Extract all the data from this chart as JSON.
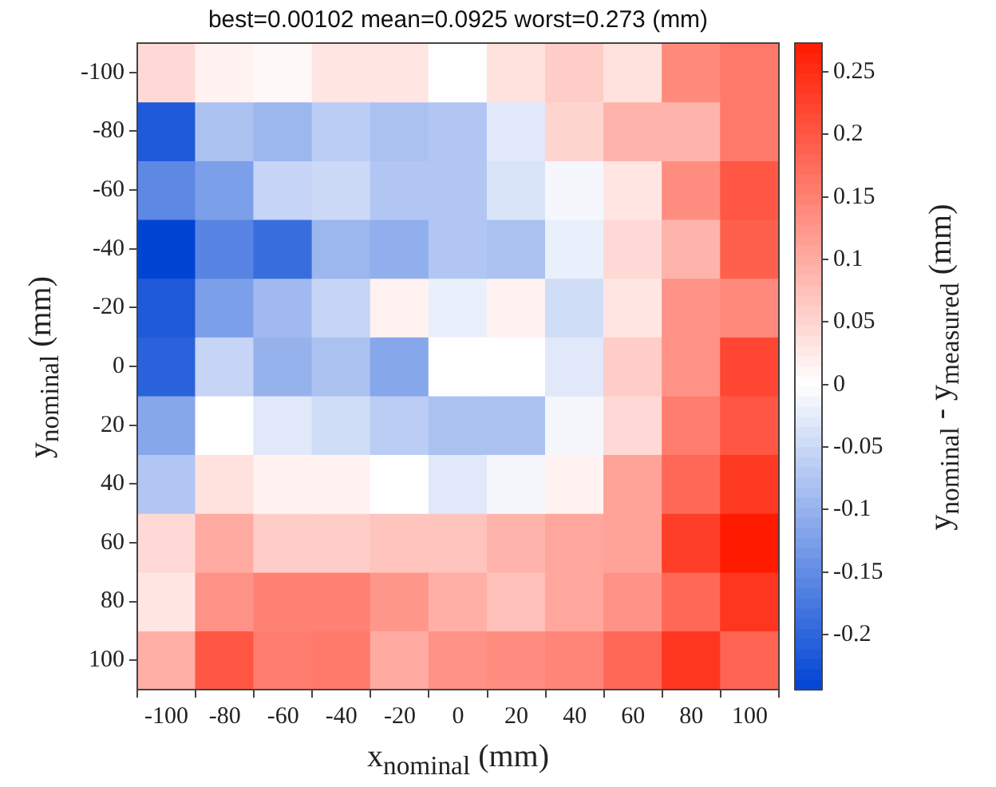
{
  "chart_data": {
    "type": "heatmap",
    "title": "best=0.00102  mean=0.0925  worst=0.273 (mm)",
    "xlabel": "x$_{nominal}$ (mm)",
    "ylabel": "y$_{nominal}$ (mm)",
    "clabel": "y$_{nominal}$ - y$_{measured}$ (mm)",
    "categories": [
      "-100",
      "-80",
      "-60",
      "-40",
      "-20",
      "0",
      "20",
      "40",
      "60",
      "80",
      "100"
    ],
    "y_categories": [
      "-100",
      "-80",
      "-60",
      "-40",
      "-20",
      "0",
      "20",
      "40",
      "60",
      "80",
      "100"
    ],
    "cells": [
      [
        0.045,
        0.015,
        0.008,
        0.03,
        0.03,
        0.001,
        0.035,
        0.06,
        0.035,
        0.14,
        0.16
      ],
      [
        -0.215,
        -0.08,
        -0.095,
        -0.065,
        -0.08,
        -0.075,
        -0.03,
        0.05,
        0.09,
        0.09,
        0.16
      ],
      [
        -0.155,
        -0.125,
        -0.055,
        -0.05,
        -0.075,
        -0.075,
        -0.035,
        -0.01,
        0.03,
        0.135,
        0.2
      ],
      [
        -0.244,
        -0.16,
        -0.19,
        -0.095,
        -0.105,
        -0.075,
        -0.08,
        -0.02,
        0.045,
        0.09,
        0.19
      ],
      [
        -0.215,
        -0.125,
        -0.09,
        -0.055,
        0.015,
        -0.02,
        0.015,
        -0.045,
        0.03,
        0.13,
        0.14
      ],
      [
        -0.205,
        -0.055,
        -0.1,
        -0.08,
        -0.115,
        0.001,
        0.001,
        -0.03,
        0.06,
        0.13,
        0.22
      ],
      [
        -0.115,
        0.001,
        -0.03,
        -0.045,
        -0.065,
        -0.08,
        -0.08,
        -0.01,
        0.045,
        0.155,
        0.2
      ],
      [
        -0.075,
        0.035,
        0.015,
        0.015,
        0.001,
        -0.03,
        -0.01,
        0.015,
        0.11,
        0.18,
        0.235
      ],
      [
        0.045,
        0.1,
        0.06,
        0.06,
        0.07,
        0.07,
        0.09,
        0.105,
        0.11,
        0.23,
        0.273
      ],
      [
        0.03,
        0.13,
        0.15,
        0.15,
        0.125,
        0.095,
        0.075,
        0.105,
        0.13,
        0.18,
        0.24
      ],
      [
        0.095,
        0.2,
        0.155,
        0.16,
        0.1,
        0.13,
        0.135,
        0.145,
        0.18,
        0.24,
        0.185
      ]
    ],
    "clim": [
      -0.244,
      0.273
    ],
    "cticks": [
      -0.2,
      -0.15,
      -0.1,
      -0.05,
      0,
      0.05,
      0.1,
      0.15,
      0.2,
      0.25
    ]
  }
}
